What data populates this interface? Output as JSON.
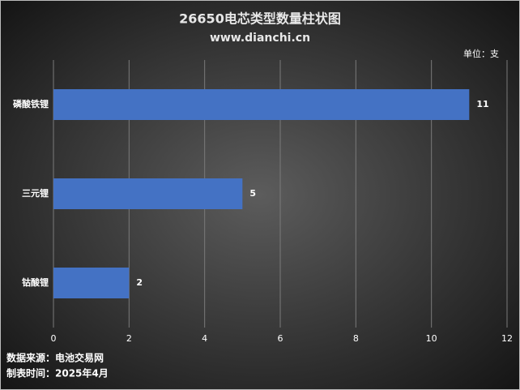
{
  "chart_data": {
    "type": "hbar",
    "title": "26650电芯类型数量柱状图",
    "subtitle": "www.dianchi.cn",
    "unit": "单位：支",
    "categories": [
      "磷酸铁锂",
      "三元锂",
      "钴酸锂"
    ],
    "values": [
      11,
      5,
      2
    ],
    "color": "#4472c4",
    "xlim": [
      0,
      12
    ],
    "xticks": [
      0,
      2,
      4,
      6,
      8,
      10,
      12
    ],
    "grid": true
  },
  "footer": {
    "source": "数据来源：电池交易网",
    "date": "制表时间：2025年4月"
  }
}
